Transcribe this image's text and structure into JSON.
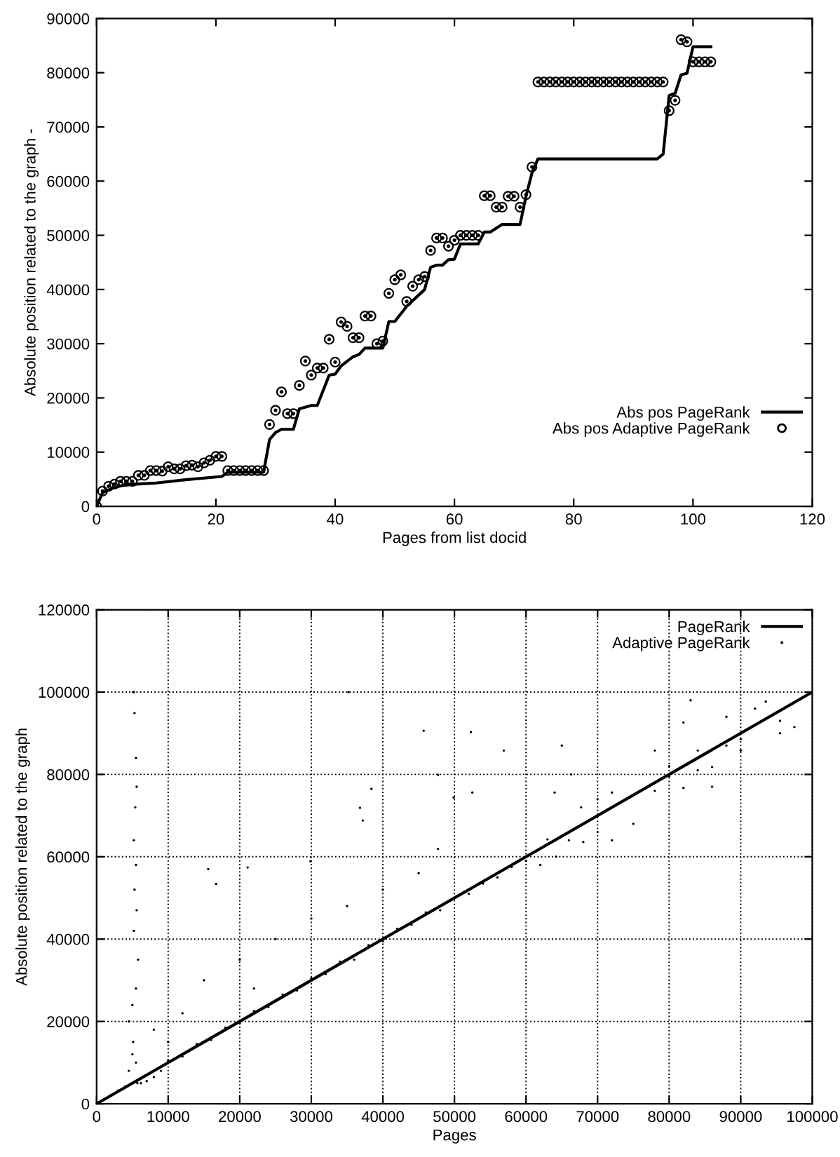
{
  "chart_data": [
    {
      "type": "line",
      "xlabel": "Pages from list docid",
      "ylabel": "Absolute position related to the graph -",
      "xlim": [
        0,
        120
      ],
      "ylim": [
        0,
        90000
      ],
      "xticks": [
        0,
        20,
        40,
        60,
        80,
        100,
        120
      ],
      "yticks": [
        0,
        10000,
        20000,
        30000,
        40000,
        50000,
        60000,
        70000,
        80000,
        90000
      ],
      "grid": false,
      "legend": "lower right",
      "series": [
        {
          "name": "Abs pos PageRank",
          "color": "#000000",
          "line_style": "solid",
          "marker": "none",
          "x": [
            0,
            1,
            3,
            5,
            10,
            14,
            21,
            22,
            28,
            29,
            30,
            31,
            33,
            34,
            36,
            37,
            39,
            40,
            41,
            43,
            44,
            45,
            48,
            49,
            50,
            52,
            55,
            56,
            57,
            58,
            59,
            60,
            61,
            64,
            65,
            66,
            68,
            71,
            72,
            73,
            74,
            94,
            95,
            96,
            97,
            98,
            99,
            100,
            103
          ],
          "values": [
            0,
            2500,
            3500,
            4000,
            4300,
            4800,
            5500,
            6300,
            6300,
            12300,
            13600,
            14200,
            14200,
            18000,
            18600,
            18600,
            24200,
            24400,
            25900,
            27600,
            28000,
            29200,
            29200,
            34100,
            34100,
            36900,
            40000,
            44100,
            44500,
            44500,
            45500,
            45600,
            48400,
            48400,
            50600,
            50600,
            52000,
            52000,
            57200,
            61500,
            64100,
            64100,
            65000,
            75800,
            76200,
            79600,
            79900,
            84800,
            84800
          ]
        },
        {
          "name": "Abs pos Adaptive PageRank",
          "type": "scatter",
          "color": "#000000",
          "marker": "circle",
          "x": [
            0,
            1,
            2,
            3,
            4,
            5,
            6,
            7,
            8,
            9,
            10,
            11,
            12,
            13,
            14,
            15,
            16,
            17,
            18,
            19,
            20,
            21,
            22,
            23,
            24,
            25,
            26,
            27,
            28,
            29,
            30,
            31,
            32,
            33,
            34,
            35,
            36,
            37,
            38,
            39,
            40,
            41,
            42,
            43,
            44,
            45,
            46,
            47,
            48,
            49,
            50,
            51,
            52,
            53,
            54,
            55,
            56,
            57,
            58,
            59,
            60,
            61,
            62,
            63,
            64,
            65,
            66,
            67,
            68,
            69,
            70,
            71,
            72,
            73,
            74,
            75,
            76,
            77,
            78,
            79,
            80,
            81,
            82,
            83,
            84,
            85,
            86,
            87,
            88,
            89,
            90,
            91,
            92,
            93,
            94,
            95,
            96,
            97,
            98,
            99,
            100,
            101,
            102,
            103
          ],
          "values": [
            0,
            2800,
            3700,
            4100,
            4600,
            4600,
            4600,
            5700,
            5700,
            6600,
            6600,
            6500,
            7300,
            6900,
            6900,
            7500,
            7600,
            7300,
            8000,
            8500,
            9200,
            9200,
            6600,
            6600,
            6600,
            6600,
            6600,
            6600,
            6600,
            15100,
            17700,
            21100,
            17100,
            17100,
            22300,
            26800,
            24200,
            25500,
            25500,
            30800,
            26600,
            34000,
            33200,
            31100,
            31100,
            35100,
            35100,
            30000,
            30500,
            39300,
            41800,
            42700,
            37800,
            40600,
            41800,
            42400,
            47200,
            49500,
            49500,
            48000,
            49100,
            50000,
            50000,
            50000,
            50000,
            57300,
            57300,
            55200,
            55200,
            57200,
            57200,
            55200,
            57500,
            62600,
            78300,
            78300,
            78300,
            78300,
            78300,
            78300,
            78300,
            78300,
            78300,
            78300,
            78300,
            78300,
            78300,
            78300,
            78300,
            78300,
            78300,
            78300,
            78300,
            78300,
            78300,
            78300,
            73000,
            74900,
            86100,
            85700,
            82000,
            82000,
            82000,
            82000
          ]
        }
      ]
    },
    {
      "type": "line",
      "xlabel": "Pages",
      "ylabel": "Absolute position related to the graph",
      "xlim": [
        0,
        100000
      ],
      "ylim": [
        0,
        120000
      ],
      "xticks": [
        0,
        10000,
        20000,
        30000,
        40000,
        50000,
        60000,
        70000,
        80000,
        90000,
        100000
      ],
      "yticks": [
        0,
        20000,
        40000,
        60000,
        80000,
        100000,
        120000
      ],
      "grid": true,
      "legend": "top right",
      "series": [
        {
          "name": "PageRank",
          "color": "#000000",
          "line_style": "solid",
          "marker": "none",
          "x": [
            0,
            100000
          ],
          "values": [
            0,
            100000
          ]
        },
        {
          "name": "Adaptive PageRank",
          "type": "scatter",
          "color": "#000000",
          "marker": "dot",
          "x": [
            1000,
            2000,
            3000,
            4000,
            4500,
            5000,
            5100,
            5200,
            5300,
            5500,
            5600,
            5400,
            5200,
            5500,
            5300,
            5600,
            5200,
            5800,
            5500,
            5000,
            4500,
            5100,
            5500,
            5700,
            6200,
            7000,
            8000,
            9000,
            10000,
            12000,
            14000,
            16000,
            18000,
            20000,
            22000,
            24000,
            26000,
            28000,
            30000,
            32000,
            34000,
            36000,
            38000,
            40000,
            42000,
            44000,
            46000,
            48000,
            50000,
            52000,
            54000,
            56000,
            58000,
            60000,
            10000,
            12000,
            15000,
            8000,
            20000,
            22000,
            25000,
            30000,
            35000,
            40000,
            45000,
            15600,
            16700,
            21100,
            29900,
            35200,
            38400,
            36800,
            37200,
            47700,
            49900,
            52500,
            47700,
            45700,
            52300,
            56900,
            62000,
            63000,
            64200,
            64000,
            65000,
            66300,
            66000,
            67700,
            68000,
            70000,
            70000,
            72000,
            72000,
            75000,
            78000,
            78000,
            80000,
            80000,
            82000,
            82000,
            83000,
            84000,
            84000,
            86000,
            86000,
            88000,
            88000,
            90000,
            90000,
            92000,
            93500,
            95500,
            95500,
            97500
          ],
          "values": [
            1000,
            2100,
            3200,
            4200,
            8000,
            12000,
            100000,
            100000,
            94900,
            84000,
            77000,
            72000,
            64000,
            58000,
            52000,
            47000,
            42000,
            35000,
            28000,
            24000,
            20000,
            15000,
            10000,
            5000,
            5000,
            5500,
            6500,
            8000,
            10500,
            11500,
            14500,
            15500,
            18500,
            19500,
            22500,
            23500,
            26500,
            27500,
            30500,
            31500,
            34500,
            35000,
            38500,
            39500,
            42500,
            43500,
            46500,
            47000,
            50000,
            51000,
            53500,
            55000,
            57500,
            59000,
            15000,
            22000,
            30000,
            18000,
            35000,
            28000,
            40000,
            45000,
            48000,
            52000,
            56000,
            57000,
            53400,
            57400,
            58900,
            100000,
            76500,
            71900,
            68800,
            79900,
            74400,
            75600,
            61900,
            90600,
            90300,
            85800,
            58000,
            64200,
            60000,
            75600,
            87000,
            80000,
            64000,
            72000,
            63600,
            74000,
            66000,
            75600,
            64000,
            68000,
            76000,
            85800,
            79500,
            82000,
            76700,
            92600,
            98000,
            85800,
            81000,
            81800,
            77000,
            87000,
            94000,
            85800,
            88600,
            96000,
            97700,
            93000,
            90000,
            91500
          ]
        }
      ]
    }
  ]
}
